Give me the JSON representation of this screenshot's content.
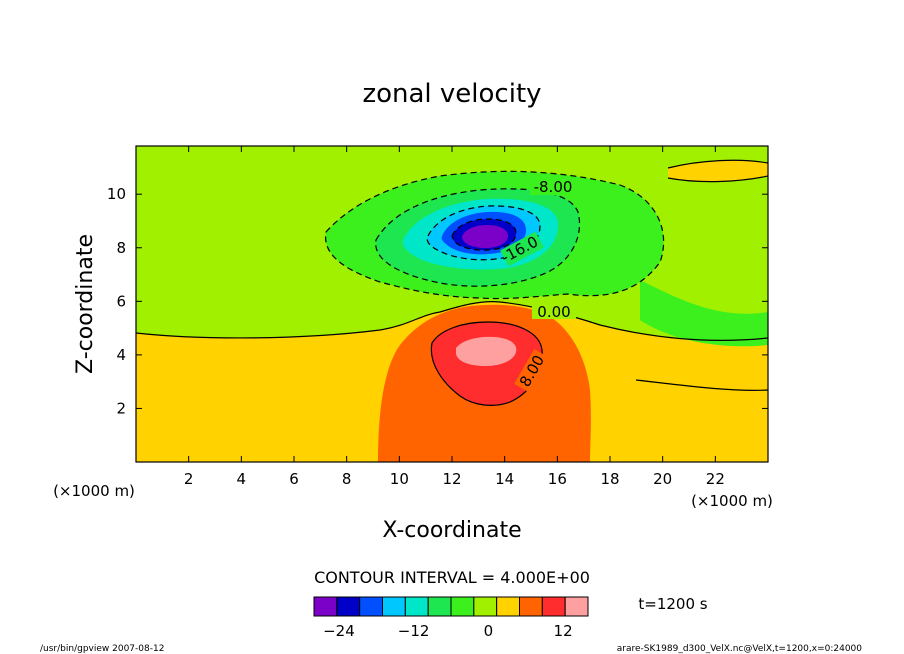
{
  "chart_data": {
    "type": "contour",
    "title": "zonal velocity",
    "xlabel": "X-coordinate",
    "ylabel": "Z-coordinate",
    "x_unit": "(×1000 m)",
    "y_unit": "(×1000 m)",
    "xlim": [
      0,
      24
    ],
    "ylim": [
      0,
      11.8
    ],
    "x_ticks": [
      "2",
      "4",
      "6",
      "8",
      "10",
      "12",
      "14",
      "16",
      "18",
      "20",
      "22"
    ],
    "y_ticks": [
      "2",
      "4",
      "6",
      "8",
      "10"
    ],
    "contour_labels": [
      "-8.00",
      "-16.0",
      "0.00",
      "8.00"
    ],
    "contour_interval_text": "CONTOUR INTERVAL = 4.000E+00",
    "time_text": "t=1200 s",
    "colorbar": {
      "min": -28,
      "max": 16,
      "step": 4,
      "tick_labels": [
        "-24",
        "-12",
        "0",
        "12"
      ],
      "colors": [
        "#7b00c8",
        "#0000c8",
        "#0050ff",
        "#00c8ff",
        "#00e6c8",
        "#1ee650",
        "#3cf01e",
        "#a0f000",
        "#ffd200",
        "#ff6400",
        "#ff2d2d",
        "#ffa0a0"
      ]
    },
    "features": [
      {
        "name": "negative core",
        "x": 13.3,
        "z": 8.6,
        "min_value": -28
      },
      {
        "name": "positive core",
        "x": 13.3,
        "z": 4.3,
        "max_value": 16
      }
    ]
  },
  "footer": {
    "left": "/usr/bin/gpview   2007-08-12",
    "right": "arare-SK1989_d300_VelX.nc@VelX,t=1200,x=0:24000"
  }
}
